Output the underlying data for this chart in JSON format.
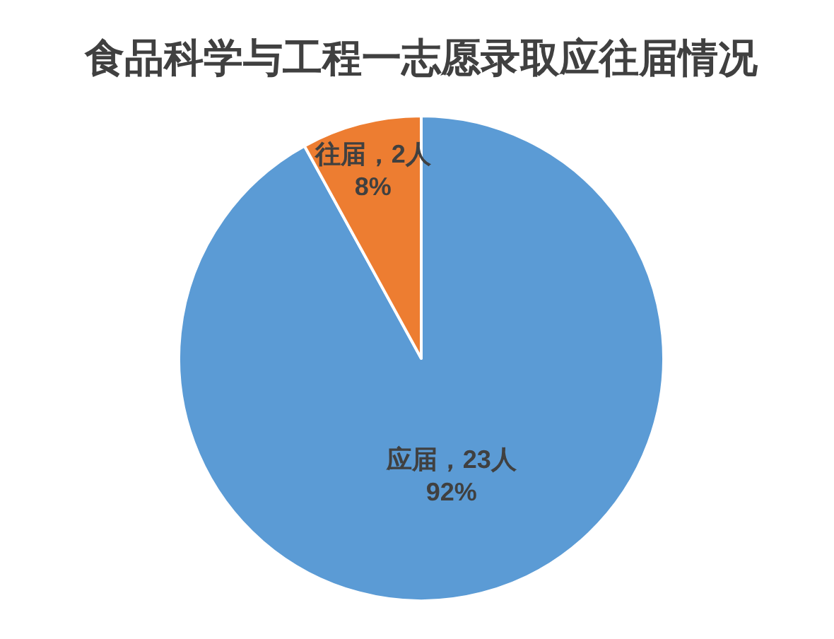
{
  "chart_data": {
    "type": "pie",
    "title": "食品科学与工程一志愿录取应往届情况",
    "categories": [
      "应届",
      "往届"
    ],
    "values": [
      23,
      2
    ],
    "colors": [
      "#5b9bd5",
      "#ed7d31"
    ],
    "value_labels": [
      "，23人\n92%",
      "，2人\n8%"
    ],
    "legend": false
  }
}
